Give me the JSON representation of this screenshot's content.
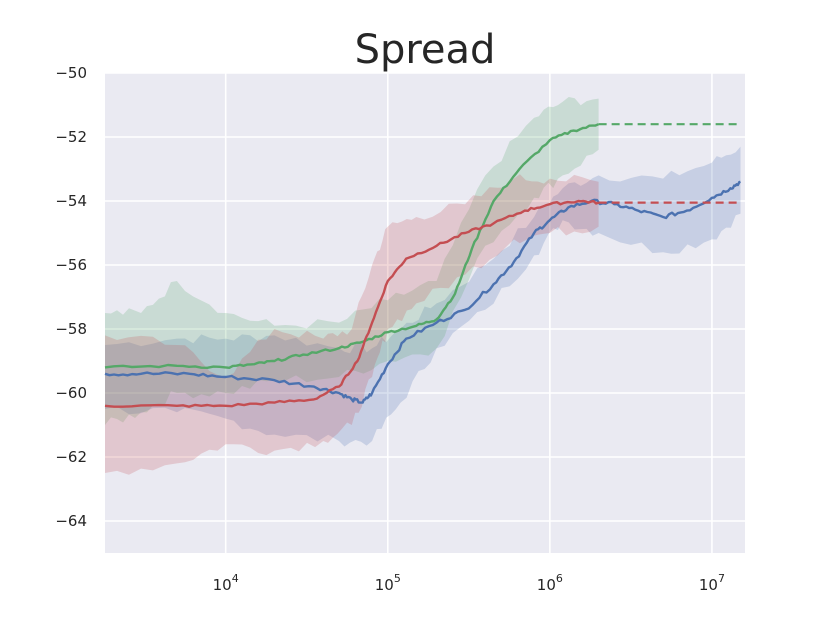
{
  "chart_data": {
    "type": "line",
    "title": "Spread",
    "xlabel": "",
    "ylabel": "",
    "x_scale": "log",
    "xlim": [
      1800,
      16000000
    ],
    "ylim": [
      -65,
      -50
    ],
    "grid": true,
    "background": "#eaeaf2",
    "x_tick_labels": [
      {
        "value": 10000,
        "base": "10",
        "exp": "4"
      },
      {
        "value": 100000,
        "base": "10",
        "exp": "5"
      },
      {
        "value": 1000000,
        "base": "10",
        "exp": "6"
      },
      {
        "value": 10000000,
        "base": "10",
        "exp": "7"
      }
    ],
    "y_ticks": [
      -50,
      -52,
      -54,
      -56,
      -58,
      -60,
      -62,
      -64
    ],
    "y_tick_labels": [
      "−50",
      "−52",
      "−54",
      "−56",
      "−58",
      "−60",
      "−62",
      "−64"
    ],
    "series": [
      {
        "color": "#4c72b0",
        "points": [
          [
            1800,
            -59.4
          ],
          [
            3000,
            -59.4
          ],
          [
            6000,
            -59.4
          ],
          [
            10000,
            -59.5
          ],
          [
            20000,
            -59.6
          ],
          [
            35000,
            -59.8
          ],
          [
            50000,
            -60.0
          ],
          [
            60000,
            -60.2
          ],
          [
            70000,
            -60.3
          ],
          [
            80000,
            -60.0
          ],
          [
            100000,
            -59.1
          ],
          [
            130000,
            -58.3
          ],
          [
            200000,
            -57.8
          ],
          [
            300000,
            -57.4
          ],
          [
            450000,
            -56.6
          ],
          [
            600000,
            -55.9
          ],
          [
            800000,
            -55.0
          ],
          [
            1000000,
            -54.6
          ],
          [
            1300000,
            -54.2
          ],
          [
            1800000,
            -54.0
          ],
          [
            2500000,
            -54.1
          ],
          [
            3500000,
            -54.3
          ],
          [
            5000000,
            -54.5
          ],
          [
            7000000,
            -54.3
          ],
          [
            10000000,
            -53.9
          ],
          [
            13000000,
            -53.6
          ],
          [
            15000000,
            -53.4
          ]
        ],
        "band": [
          [
            1800,
            -58.5,
            -60.5
          ],
          [
            5000,
            -58.3,
            -60.6
          ],
          [
            10000,
            -58.3,
            -60.8
          ],
          [
            20000,
            -58.2,
            -61.3
          ],
          [
            50000,
            -58.6,
            -61.5
          ],
          [
            80000,
            -58.6,
            -61.5
          ],
          [
            120000,
            -58.0,
            -60.3
          ],
          [
            200000,
            -57.2,
            -58.6
          ],
          [
            400000,
            -56.0,
            -57.4
          ],
          [
            800000,
            -54.5,
            -55.7
          ],
          [
            1200000,
            -53.6,
            -54.6
          ],
          [
            2000000,
            -53.2,
            -55.0
          ],
          [
            5000000,
            -53.3,
            -55.6
          ],
          [
            10000000,
            -52.8,
            -55.2
          ],
          [
            15000000,
            -52.3,
            -54.4
          ]
        ]
      },
      {
        "color": "#55a868",
        "points": [
          [
            1800,
            -59.2
          ],
          [
            5000,
            -59.15
          ],
          [
            10000,
            -59.2
          ],
          [
            15000,
            -59.1
          ],
          [
            20000,
            -59.0
          ],
          [
            30000,
            -58.8
          ],
          [
            50000,
            -58.6
          ],
          [
            70000,
            -58.4
          ],
          [
            100000,
            -58.1
          ],
          [
            150000,
            -57.9
          ],
          [
            200000,
            -57.7
          ],
          [
            260000,
            -56.9
          ],
          [
            330000,
            -55.5
          ],
          [
            450000,
            -54.0
          ],
          [
            650000,
            -53.0
          ],
          [
            1000000,
            -52.1
          ],
          [
            1400000,
            -51.8
          ],
          [
            2000000,
            -51.6
          ]
        ],
        "band": [
          [
            1800,
            -57.5,
            -61.0
          ],
          [
            3000,
            -57.5,
            -60.6
          ],
          [
            5000,
            -56.5,
            -60.0
          ],
          [
            10000,
            -57.5,
            -60.0
          ],
          [
            20000,
            -57.9,
            -59.6
          ],
          [
            50000,
            -57.8,
            -59.5
          ],
          [
            100000,
            -57.1,
            -59.0
          ],
          [
            200000,
            -56.5,
            -58.6
          ],
          [
            400000,
            -53.2,
            -55.4
          ],
          [
            800000,
            -51.4,
            -53.9
          ],
          [
            1200000,
            -50.9,
            -53.2
          ],
          [
            2000000,
            -50.8,
            -52.4
          ]
        ]
      },
      {
        "color": "#c44e52",
        "points": [
          [
            1800,
            -60.4
          ],
          [
            5000,
            -60.4
          ],
          [
            10000,
            -60.4
          ],
          [
            20000,
            -60.3
          ],
          [
            35000,
            -60.2
          ],
          [
            50000,
            -59.8
          ],
          [
            65000,
            -59.0
          ],
          [
            80000,
            -57.8
          ],
          [
            100000,
            -56.5
          ],
          [
            130000,
            -55.8
          ],
          [
            200000,
            -55.4
          ],
          [
            300000,
            -55.0
          ],
          [
            450000,
            -54.7
          ],
          [
            700000,
            -54.3
          ],
          [
            1000000,
            -54.1
          ],
          [
            1500000,
            -54.0
          ],
          [
            2000000,
            -54.05
          ]
        ],
        "band": [
          [
            1800,
            -58.2,
            -62.5
          ],
          [
            5000,
            -58.5,
            -62.2
          ],
          [
            10000,
            -59.5,
            -61.6
          ],
          [
            20000,
            -58.0,
            -61.8
          ],
          [
            40000,
            -58.3,
            -61.5
          ],
          [
            60000,
            -58.0,
            -61.0
          ],
          [
            80000,
            -56.0,
            -59.5
          ],
          [
            100000,
            -54.8,
            -58.0
          ],
          [
            150000,
            -54.5,
            -57.2
          ],
          [
            300000,
            -54.1,
            -56.3
          ],
          [
            600000,
            -53.3,
            -55.2
          ],
          [
            1000000,
            -53.3,
            -55.0
          ],
          [
            2000000,
            -53.4,
            -54.8
          ]
        ]
      }
    ],
    "reference_lines": [
      {
        "color": "#55a868",
        "y": -51.6,
        "x_from": 2000000,
        "x_to": 15000000,
        "style": "dashed"
      },
      {
        "color": "#c44e52",
        "y": -54.05,
        "x_from": 2000000,
        "x_to": 15000000,
        "style": "dashed"
      }
    ]
  }
}
